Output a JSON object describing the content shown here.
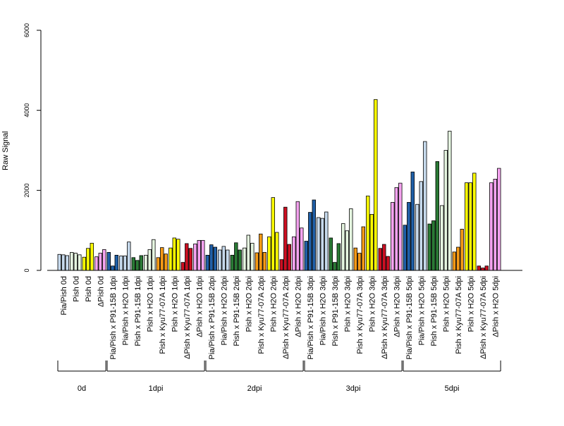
{
  "chart_data": {
    "type": "bar",
    "title": "",
    "ylabel": "Raw Signal",
    "ylim": [
      0,
      6000
    ],
    "yticks": [
      0,
      2000,
      4000,
      6000
    ],
    "grid": false,
    "legend": "none",
    "group_labels": [
      "0d",
      "1dpi",
      "2dpi",
      "3dpi",
      "5dpi"
    ],
    "categories": [
      "Pia/Pish 0d",
      "Pish 0d",
      "Pish 0d",
      "ΔPish 0d",
      "Pia/Pish x P91-15B 1dpi",
      "Pia/Pish x H2O 1dpi",
      "Pish x P91-15B 1dpi",
      "Pish x H2O 1dpi",
      "Pish x Kyu77-07A 1dpi",
      "Pish x H2O 1dpi",
      "ΔPish x Kyu77-07A 1dpi",
      "ΔPish x H2O 1dpi",
      "Pia/Pish x P91-15B 2dpi",
      "Pia/Pish x H2O 2dpi",
      "Pish x P91-15B 2dpi",
      "Pish x H2O 2dpi",
      "Pish x Kyu77-07A 2dpi",
      "Pish x H2O 2dpi",
      "ΔPish x Kyu77-07A 2dpi",
      "ΔPish x H2O 2dpi",
      "Pia/Pish x P91-15B 3dpi",
      "Pia/Pish x H2O 3dpi",
      "Pish x P91-15B 3dpi",
      "Pish x H2O 3dpi",
      "Pish x Kyu77-07A 3dpi",
      "Pish x H2O 3dpi",
      "ΔPish x Kyu77-07A 3dpi",
      "ΔPish x H2O 3dpi",
      "Pia/Pish x P91-15B 5dpi",
      "Pia/Pish x H2O 5dpi",
      "Pish x P91-15B 5dpi",
      "Pish x H2O 5dpi",
      "Pish x Kyu77-07A 5dpi",
      "Pish x H2O 5dpi",
      "ΔPish x Kyu77-07A 5dpi",
      "ΔPish x H2O 5dpi"
    ],
    "category_group": [
      0,
      0,
      0,
      0,
      1,
      1,
      1,
      1,
      1,
      1,
      1,
      1,
      2,
      2,
      2,
      2,
      2,
      2,
      2,
      2,
      3,
      3,
      3,
      3,
      3,
      3,
      3,
      3,
      4,
      4,
      4,
      4,
      4,
      4,
      4,
      4
    ],
    "replicate_values": [
      [
        400,
        390,
        370
      ],
      [
        450,
        430,
        390
      ],
      [
        330,
        550,
        680
      ],
      [
        340,
        430,
        520
      ],
      [
        450,
        110,
        380
      ],
      [
        360,
        360,
        710
      ],
      [
        320,
        250,
        370
      ],
      [
        380,
        520,
        770
      ],
      [
        320,
        570,
        410
      ],
      [
        560,
        810,
        780
      ],
      [
        200,
        670,
        550
      ],
      [
        660,
        750,
        750
      ],
      [
        380,
        640,
        580
      ],
      [
        510,
        600,
        510
      ],
      [
        380,
        690,
        510
      ],
      [
        560,
        880,
        680
      ],
      [
        440,
        910,
        450
      ],
      [
        840,
        1820,
        950
      ],
      [
        270,
        1580,
        650
      ],
      [
        840,
        1720,
        1060
      ],
      [
        730,
        1450,
        1760
      ],
      [
        1320,
        1300,
        1460
      ],
      [
        810,
        200,
        670
      ],
      [
        1170,
        990,
        1540
      ],
      [
        560,
        430,
        1090
      ],
      [
        1860,
        1400,
        4270
      ],
      [
        550,
        650,
        350
      ],
      [
        1700,
        2070,
        2180
      ],
      [
        1130,
        1700,
        2460
      ],
      [
        1650,
        2220,
        3220
      ],
      [
        1160,
        1240,
        2720
      ],
      [
        1620,
        3000,
        3480
      ],
      [
        460,
        580,
        1030
      ],
      [
        2190,
        2190,
        2430
      ],
      [
        110,
        60,
        110
      ],
      [
        2190,
        2280,
        2550
      ]
    ],
    "colors": {
      "pia_pish": "#c6d9ec",
      "pish": "#e5f5e0",
      "pish_light_yellow": "#ffff00",
      "delta_pish": "#f5a3f0",
      "pia_pish_p91": "#2060a8",
      "pish_p91": "#2a7a35",
      "pish_kyu": "#f59a16",
      "delta_kyu": "#cc0f22"
    },
    "category_color": [
      "pia_pish",
      "pish",
      "pish_light_yellow",
      "delta_pish",
      "pia_pish_p91",
      "pia_pish",
      "pish_p91",
      "pish",
      "pish_kyu",
      "pish_light_yellow",
      "delta_kyu",
      "delta_pish",
      "pia_pish_p91",
      "pia_pish",
      "pish_p91",
      "pish",
      "pish_kyu",
      "pish_light_yellow",
      "delta_kyu",
      "delta_pish",
      "pia_pish_p91",
      "pia_pish",
      "pish_p91",
      "pish",
      "pish_kyu",
      "pish_light_yellow",
      "delta_kyu",
      "delta_pish",
      "pia_pish_p91",
      "pia_pish",
      "pish_p91",
      "pish",
      "pish_kyu",
      "pish_light_yellow",
      "delta_kyu",
      "delta_pish"
    ]
  }
}
